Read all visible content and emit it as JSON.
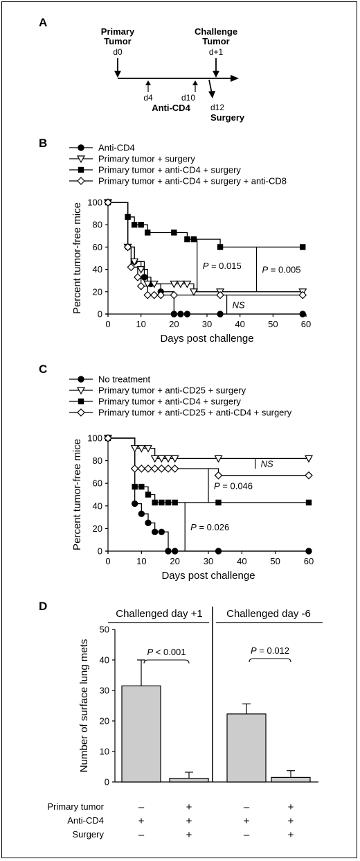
{
  "panel_a": {
    "letter": "A",
    "primary_tumor": [
      "Primary",
      "Tumor"
    ],
    "d0": "d0",
    "challenge_tumor": [
      "Challenge",
      "Tumor"
    ],
    "dplus1": "d+1",
    "d4": "d4",
    "d10": "d10",
    "anti_cd4": "Anti-CD4",
    "d12": "d12",
    "surgery": "Surgery"
  },
  "colors": {
    "ink": "#000000",
    "bar_fill": "#cccccc"
  },
  "chart_data": [
    {
      "panel": "B",
      "type": "line",
      "step": true,
      "xlabel": "Days post challenge",
      "ylabel": "Percent tumor-free mice",
      "xlim": [
        0,
        60
      ],
      "ylim": [
        0,
        100
      ],
      "xticks": [
        0,
        10,
        20,
        30,
        40,
        50,
        60
      ],
      "yticks": [
        0,
        20,
        40,
        60,
        80,
        100
      ],
      "legend_position": "top-left",
      "series": [
        {
          "name": "Anti-CD4",
          "marker": "circle-filled",
          "x": [
            0,
            6,
            8,
            11,
            13,
            16,
            20,
            22,
            24,
            34,
            59
          ],
          "y": [
            100,
            60,
            47,
            33,
            27,
            20,
            0,
            0,
            0,
            0,
            0
          ]
        },
        {
          "name": "Primary tumor + surgery",
          "marker": "triangle-open",
          "x": [
            0,
            6,
            8,
            10,
            12,
            14,
            20,
            22,
            24,
            26,
            34,
            59
          ],
          "y": [
            100,
            60,
            47,
            40,
            27,
            27,
            27,
            27,
            27,
            20,
            20,
            20
          ]
        },
        {
          "name": "Primary tumor + anti-CD4 + surgery",
          "marker": "square-filled",
          "x": [
            0,
            6,
            8,
            10,
            12,
            20,
            24,
            26,
            34,
            59
          ],
          "y": [
            100,
            87,
            80,
            80,
            73,
            73,
            67,
            67,
            60,
            60
          ]
        },
        {
          "name": "Primary tumor + anti-CD4 + surgery + anti-CD8",
          "marker": "diamond-open",
          "x": [
            0,
            6,
            7,
            9,
            10,
            12,
            14,
            16,
            20,
            34,
            59
          ],
          "y": [
            100,
            60,
            42,
            33,
            25,
            17,
            17,
            17,
            17,
            17,
            17
          ]
        }
      ],
      "annotations": [
        {
          "text": "P = 0.015",
          "x1": 27,
          "y1": 20,
          "y2": 67
        },
        {
          "text": "P = 0.005",
          "x1": 45,
          "y1": 20,
          "y2": 60
        },
        {
          "text": "NS",
          "x1": 36,
          "y1": 17,
          "y2": 0
        }
      ]
    },
    {
      "panel": "C",
      "type": "line",
      "step": true,
      "xlabel": "Days post challenge",
      "ylabel": "Percent tumor-free mice",
      "xlim": [
        0,
        60
      ],
      "ylim": [
        0,
        100
      ],
      "xticks": [
        0,
        10,
        20,
        30,
        40,
        50,
        60
      ],
      "yticks": [
        0,
        20,
        40,
        60,
        80,
        100
      ],
      "legend_position": "top-left",
      "series": [
        {
          "name": "No treatment",
          "marker": "circle-filled",
          "x": [
            0,
            8,
            10,
            12,
            14,
            16,
            18,
            20,
            33,
            60
          ],
          "y": [
            100,
            42,
            33,
            25,
            17,
            17,
            0,
            0,
            0,
            0
          ]
        },
        {
          "name": "Primary tumor + anti-CD25 + surgery",
          "marker": "triangle-open",
          "x": [
            0,
            8,
            10,
            12,
            14,
            16,
            18,
            20,
            33,
            60
          ],
          "y": [
            100,
            91,
            91,
            91,
            82,
            82,
            82,
            82,
            82,
            82
          ]
        },
        {
          "name": "Primary tumor + anti-CD4 + surgery",
          "marker": "square-filled",
          "x": [
            0,
            8,
            10,
            12,
            14,
            16,
            18,
            20,
            33,
            60
          ],
          "y": [
            100,
            57,
            57,
            50,
            43,
            43,
            43,
            43,
            43,
            43
          ]
        },
        {
          "name": "Primary tumor + anti-CD25 + anti-CD4 + surgery",
          "marker": "diamond-open",
          "x": [
            0,
            8,
            10,
            12,
            14,
            16,
            18,
            20,
            33,
            60
          ],
          "y": [
            100,
            73,
            73,
            73,
            73,
            73,
            73,
            73,
            67,
            67
          ]
        }
      ],
      "annotations": [
        {
          "text": "NS",
          "x1": 44,
          "y1": 82,
          "y2": 73
        },
        {
          "text": "P = 0.046",
          "x1": 30,
          "y1": 43,
          "y2": 73
        },
        {
          "text": "P = 0.026",
          "x1": 23,
          "y1": 0,
          "y2": 43
        }
      ]
    },
    {
      "panel": "D",
      "type": "bar",
      "ylabel": "Number of surface lung mets",
      "ylim": [
        0,
        50
      ],
      "yticks": [
        0,
        10,
        20,
        30,
        40,
        50
      ],
      "groups": [
        {
          "title": "Challenged day +1",
          "values": [
            31.5,
            1.2
          ],
          "errors": [
            8.5,
            2.0
          ],
          "p": "P < 0.001"
        },
        {
          "title": "Challenged day -6",
          "values": [
            22.3,
            1.5
          ],
          "errors": [
            3.3,
            2.2
          ],
          "p": "P = 0.012"
        }
      ],
      "conditions": [
        {
          "label": "Primary tumor",
          "values": [
            "–",
            "+",
            "–",
            "+"
          ]
        },
        {
          "label": "Anti-CD4",
          "values": [
            "+",
            "+",
            "+",
            "+"
          ]
        },
        {
          "label": "Surgery",
          "values": [
            "–",
            "+",
            "–",
            "+"
          ]
        }
      ]
    }
  ]
}
